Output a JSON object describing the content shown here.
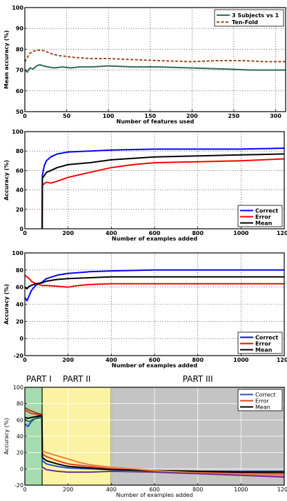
{
  "chart_data": [
    {
      "type": "line",
      "xlabel": "Number of features used",
      "ylabel": "Mean accuracy (%)",
      "xlim": [
        0,
        312
      ],
      "ylim": [
        50,
        100
      ],
      "xticks": [
        0,
        50,
        100,
        150,
        200,
        250,
        300
      ],
      "yticks": [
        50,
        60,
        70,
        80,
        90,
        100
      ],
      "grid": true,
      "legend_position": "top-right",
      "series": [
        {
          "name": "3 Subjects vs 1",
          "color": "#2e6b4f",
          "dash": "solid",
          "points": [
            [
              0,
              70
            ],
            [
              3,
              69
            ],
            [
              6,
              71
            ],
            [
              10,
              70.5
            ],
            [
              14,
              72
            ],
            [
              18,
              72.5
            ],
            [
              22,
              72
            ],
            [
              28,
              71.5
            ],
            [
              35,
              71
            ],
            [
              45,
              71.5
            ],
            [
              55,
              71
            ],
            [
              65,
              71.5
            ],
            [
              80,
              71.5
            ],
            [
              100,
              72
            ],
            [
              130,
              71.5
            ],
            [
              160,
              71.5
            ],
            [
              200,
              71
            ],
            [
              240,
              70.5
            ],
            [
              270,
              70
            ],
            [
              300,
              70
            ],
            [
              312,
              70
            ]
          ]
        },
        {
          "name": "Ten-Fold",
          "color": "#a0461a",
          "dash": "dashed",
          "points": [
            [
              0,
              74
            ],
            [
              3,
              76
            ],
            [
              6,
              78
            ],
            [
              10,
              79
            ],
            [
              15,
              79.5
            ],
            [
              20,
              79.5
            ],
            [
              25,
              79
            ],
            [
              30,
              78
            ],
            [
              40,
              77
            ],
            [
              50,
              76.5
            ],
            [
              60,
              76
            ],
            [
              80,
              75.5
            ],
            [
              100,
              75.5
            ],
            [
              130,
              75
            ],
            [
              160,
              74.5
            ],
            [
              200,
              74
            ],
            [
              230,
              74.5
            ],
            [
              260,
              74.5
            ],
            [
              290,
              74
            ],
            [
              312,
              74
            ]
          ]
        }
      ]
    },
    {
      "type": "line",
      "xlabel": "Number of examples added",
      "ylabel": "Accuracy (%)",
      "xlim": [
        0,
        1200
      ],
      "ylim": [
        0,
        100
      ],
      "xticks": [
        0,
        200,
        400,
        600,
        800,
        1000,
        1200
      ],
      "yticks": [
        0,
        20,
        40,
        60,
        80,
        100
      ],
      "grid": true,
      "legend_position": "bottom-right",
      "series": [
        {
          "name": "Correct",
          "color": "#0000ff",
          "points": [
            [
              80,
              0
            ],
            [
              81,
              55
            ],
            [
              90,
              65
            ],
            [
              100,
              70
            ],
            [
              120,
              74
            ],
            [
              150,
              77
            ],
            [
              200,
              79
            ],
            [
              300,
              80
            ],
            [
              400,
              81
            ],
            [
              600,
              82
            ],
            [
              800,
              82
            ],
            [
              1000,
              82
            ],
            [
              1200,
              83
            ]
          ]
        },
        {
          "name": "Error",
          "color": "#ff0000",
          "points": [
            [
              80,
              0
            ],
            [
              81,
              45
            ],
            [
              100,
              48
            ],
            [
              120,
              47
            ],
            [
              150,
              49
            ],
            [
              200,
              53
            ],
            [
              300,
              58
            ],
            [
              400,
              63
            ],
            [
              500,
              66
            ],
            [
              600,
              68
            ],
            [
              800,
              69
            ],
            [
              1000,
              70
            ],
            [
              1200,
              72
            ]
          ]
        },
        {
          "name": "Mean",
          "color": "#000000",
          "points": [
            [
              80,
              0
            ],
            [
              81,
              52
            ],
            [
              100,
              58
            ],
            [
              120,
              60
            ],
            [
              150,
              63
            ],
            [
              200,
              66
            ],
            [
              300,
              68
            ],
            [
              400,
              71
            ],
            [
              600,
              74
            ],
            [
              800,
              75
            ],
            [
              1000,
              76
            ],
            [
              1200,
              77
            ]
          ]
        }
      ]
    },
    {
      "type": "line",
      "xlabel": "Number of examples added",
      "ylabel": "Accuracy (%)",
      "xlim": [
        0,
        1200
      ],
      "ylim": [
        -20,
        100
      ],
      "xticks": [
        0,
        200,
        400,
        600,
        800,
        1000,
        1200
      ],
      "yticks": [
        -20,
        0,
        20,
        40,
        60,
        80,
        100
      ],
      "grid": true,
      "legend_position": "bottom-right",
      "series": [
        {
          "name": "Correct",
          "color": "#0000ff",
          "points": [
            [
              0,
              48
            ],
            [
              10,
              44
            ],
            [
              20,
              50
            ],
            [
              30,
              56
            ],
            [
              50,
              62
            ],
            [
              80,
              66
            ],
            [
              100,
              70
            ],
            [
              150,
              74
            ],
            [
              200,
              76
            ],
            [
              300,
              78
            ],
            [
              400,
              79
            ],
            [
              600,
              80
            ],
            [
              800,
              80
            ],
            [
              1000,
              80
            ],
            [
              1200,
              80
            ]
          ]
        },
        {
          "name": "Error",
          "color": "#ff0000",
          "points": [
            [
              0,
              74
            ],
            [
              10,
              72
            ],
            [
              20,
              70
            ],
            [
              30,
              67
            ],
            [
              50,
              64
            ],
            [
              80,
              62
            ],
            [
              100,
              62
            ],
            [
              150,
              61
            ],
            [
              200,
              60
            ],
            [
              250,
              62
            ],
            [
              300,
              63
            ],
            [
              400,
              64
            ],
            [
              600,
              64
            ],
            [
              800,
              64
            ],
            [
              1000,
              64
            ],
            [
              1200,
              64
            ]
          ]
        },
        {
          "name": "Mean",
          "color": "#000000",
          "points": [
            [
              0,
              60
            ],
            [
              10,
              58
            ],
            [
              20,
              61
            ],
            [
              30,
              62
            ],
            [
              50,
              64
            ],
            [
              80,
              65
            ],
            [
              100,
              67
            ],
            [
              150,
              69
            ],
            [
              200,
              70
            ],
            [
              300,
              71
            ],
            [
              400,
              72
            ],
            [
              600,
              72
            ],
            [
              800,
              72
            ],
            [
              1000,
              72
            ],
            [
              1200,
              72
            ]
          ]
        }
      ]
    },
    {
      "type": "line",
      "xlabel": "Number of examples added",
      "ylabel": "Accuracy (%)",
      "xlim": [
        0,
        1200
      ],
      "ylim": [
        -20,
        100
      ],
      "xticks": [
        0,
        200,
        400,
        600,
        800,
        1000,
        1200
      ],
      "yticks": [
        -20,
        0,
        20,
        40,
        60,
        80,
        100
      ],
      "grid": true,
      "legend_position": "top-right",
      "phases": [
        {
          "label": "PART I",
          "range": [
            0,
            80
          ],
          "color": "#a6dbb0"
        },
        {
          "label": "PART II",
          "range": [
            80,
            400
          ],
          "color": "#fbf3a3"
        },
        {
          "label": "PART III",
          "range": [
            400,
            1200
          ],
          "color": "#c4c4c4"
        }
      ],
      "series": [
        {
          "name": "Correct",
          "color": "#1f4fc4",
          "points": [
            [
              0,
              55
            ],
            [
              15,
              52
            ],
            [
              30,
              58
            ],
            [
              50,
              62
            ],
            [
              70,
              64
            ],
            [
              79,
              64
            ],
            [
              81,
              10
            ],
            [
              100,
              6
            ],
            [
              150,
              3
            ],
            [
              200,
              1
            ],
            [
              300,
              0
            ],
            [
              400,
              -1
            ],
            [
              600,
              -2
            ],
            [
              800,
              -3
            ],
            [
              1000,
              -3
            ],
            [
              1200,
              -3
            ]
          ]
        },
        {
          "name": "Error",
          "color": "#e53f1f",
          "points": [
            [
              0,
              72
            ],
            [
              15,
              70
            ],
            [
              30,
              68
            ],
            [
              50,
              67
            ],
            [
              70,
              66
            ],
            [
              79,
              66
            ],
            [
              81,
              18
            ],
            [
              100,
              15
            ],
            [
              150,
              10
            ],
            [
              200,
              6
            ],
            [
              300,
              3
            ],
            [
              400,
              0
            ],
            [
              600,
              -3
            ],
            [
              800,
              -4
            ],
            [
              1000,
              -5
            ],
            [
              1200,
              -6
            ]
          ]
        },
        {
          "name": "Mean",
          "color": "#000000",
          "points": [
            [
              0,
              63
            ],
            [
              15,
              62
            ],
            [
              30,
              63
            ],
            [
              50,
              64
            ],
            [
              70,
              65
            ],
            [
              79,
              65
            ],
            [
              81,
              14
            ],
            [
              100,
              10
            ],
            [
              150,
              6
            ],
            [
              200,
              3
            ],
            [
              300,
              1
            ],
            [
              400,
              -1
            ],
            [
              600,
              -2
            ],
            [
              800,
              -3
            ],
            [
              1000,
              -4
            ],
            [
              1200,
              -4
            ]
          ]
        },
        {
          "name": "",
          "color": "#f07f3c",
          "points": [
            [
              82,
              22
            ],
            [
              100,
              20
            ],
            [
              150,
              16
            ],
            [
              200,
              12
            ],
            [
              250,
              8
            ],
            [
              300,
              5
            ],
            [
              400,
              2
            ],
            [
              600,
              -2
            ],
            [
              800,
              -5
            ],
            [
              1000,
              -7
            ],
            [
              1200,
              -8
            ]
          ]
        },
        {
          "name": "",
          "color": "#6b2f93",
          "points": [
            [
              82,
              2
            ],
            [
              100,
              -1
            ],
            [
              150,
              -3
            ],
            [
              200,
              -4
            ],
            [
              300,
              -4
            ],
            [
              400,
              -3
            ],
            [
              600,
              -4
            ],
            [
              800,
              -6
            ],
            [
              1000,
              -8
            ],
            [
              1200,
              -10
            ]
          ]
        },
        {
          "name": "",
          "color": "#2f7d3c",
          "points": [
            [
              0,
              60
            ],
            [
              20,
              58
            ],
            [
              40,
              61
            ],
            [
              60,
              62
            ],
            [
              79,
              63
            ]
          ]
        },
        {
          "name": "",
          "color": "#8b4a1a",
          "points": [
            [
              0,
              75
            ],
            [
              20,
              72
            ],
            [
              40,
              70
            ],
            [
              60,
              68
            ],
            [
              79,
              67
            ]
          ]
        }
      ]
    }
  ]
}
